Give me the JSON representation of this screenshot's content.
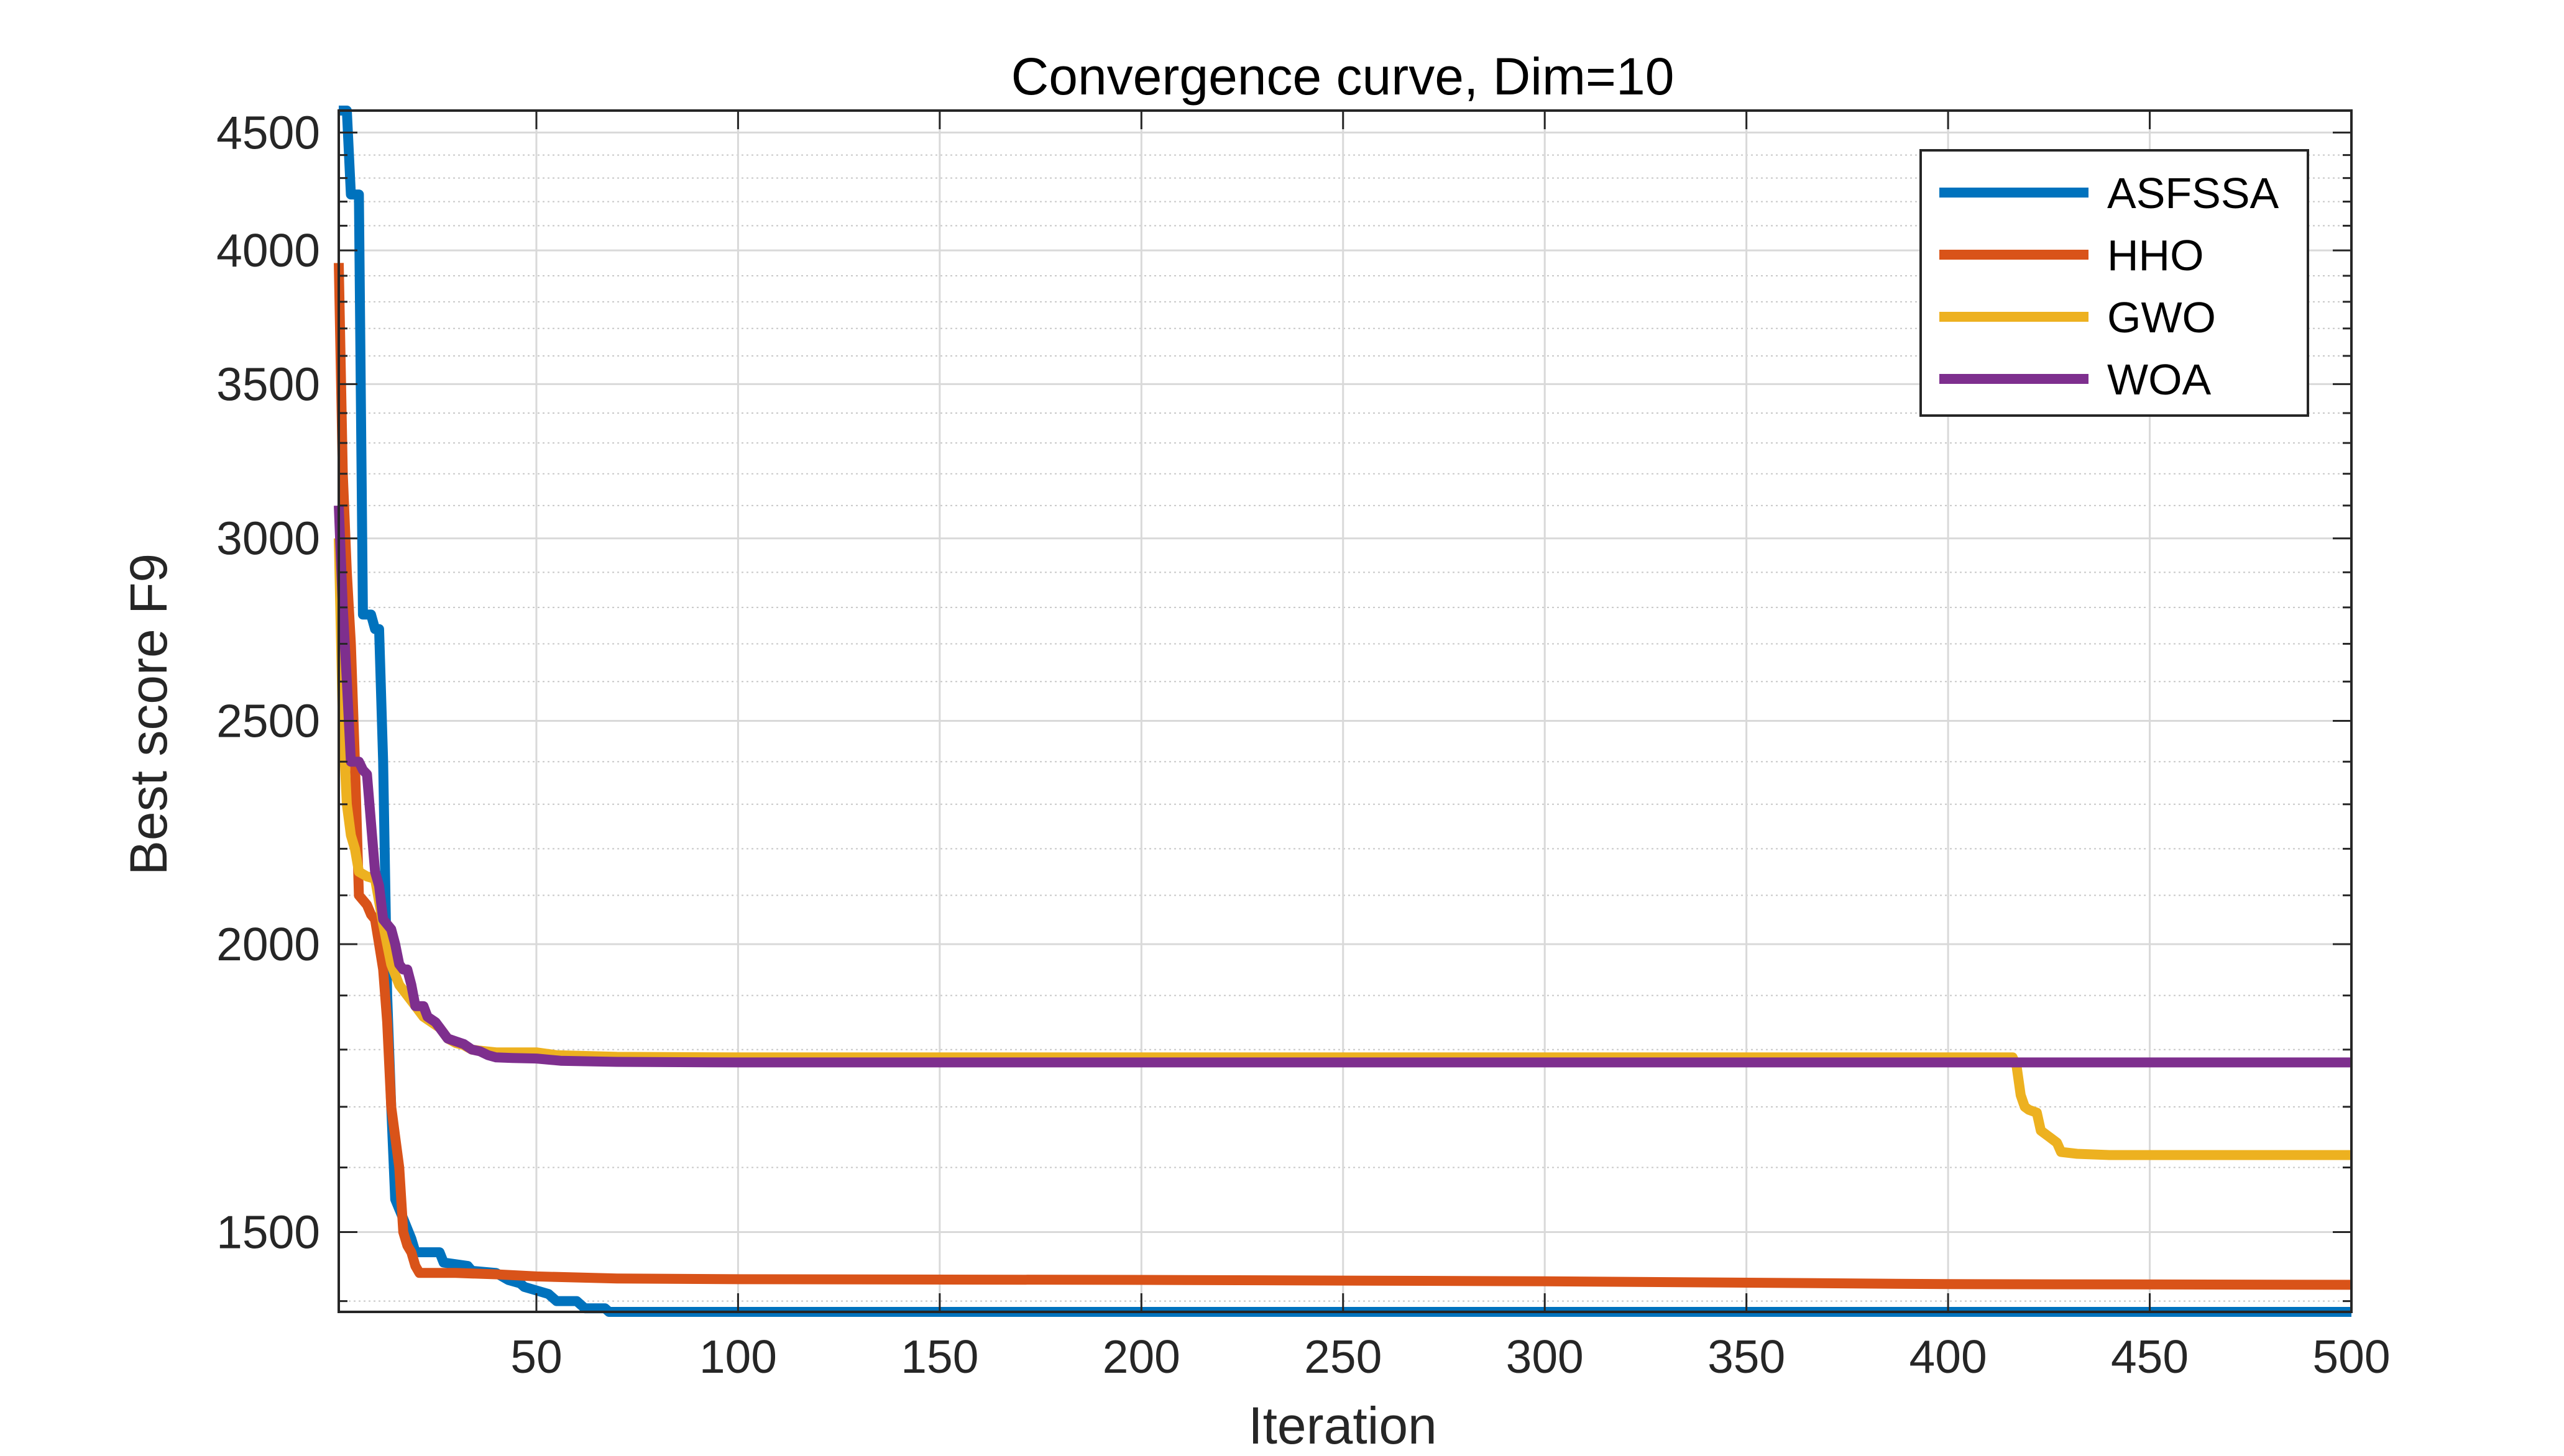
{
  "chart_data": {
    "type": "line",
    "title": "Convergence curve, Dim=10",
    "xlabel": "Iteration",
    "ylabel": "Best score F9",
    "xlim": [
      1,
      500
    ],
    "ylim": [
      1385,
      4600
    ],
    "y_scale": "log",
    "xticks": [
      50,
      100,
      150,
      200,
      250,
      300,
      350,
      400,
      450,
      500
    ],
    "yticks": [
      1500,
      2000,
      2500,
      3000,
      3500,
      4000,
      4500
    ],
    "grid": true,
    "minor_grid": true,
    "legend_position": "top-right",
    "series": [
      {
        "name": "ASFSSA",
        "color": "#0072BD",
        "points": [
          [
            1,
            4600
          ],
          [
            3,
            4600
          ],
          [
            4,
            4230
          ],
          [
            6,
            4230
          ],
          [
            7,
            2780
          ],
          [
            9,
            2780
          ],
          [
            10,
            2740
          ],
          [
            11,
            2740
          ],
          [
            12,
            2400
          ],
          [
            13,
            1900
          ],
          [
            14,
            1700
          ],
          [
            15,
            1550
          ],
          [
            17,
            1520
          ],
          [
            19,
            1490
          ],
          [
            20,
            1470
          ],
          [
            26,
            1470
          ],
          [
            27,
            1455
          ],
          [
            33,
            1450
          ],
          [
            34,
            1443
          ],
          [
            40,
            1440
          ],
          [
            43,
            1430
          ],
          [
            46,
            1425
          ],
          [
            47,
            1420
          ],
          [
            50,
            1415
          ],
          [
            53,
            1410
          ],
          [
            55,
            1400
          ],
          [
            60,
            1400
          ],
          [
            62,
            1390
          ],
          [
            67,
            1390
          ],
          [
            68,
            1385
          ],
          [
            70,
            1370
          ],
          [
            71,
            1355
          ],
          [
            72,
            1352
          ],
          [
            76,
            1352
          ],
          [
            78,
            1345
          ],
          [
            81,
            1345
          ],
          [
            82,
            1330
          ],
          [
            91,
            1328
          ],
          [
            120,
            1327
          ],
          [
            131,
            1325
          ],
          [
            132,
            1315
          ],
          [
            145,
            1313
          ],
          [
            150,
            1308
          ],
          [
            200,
            1305
          ],
          [
            500,
            1305
          ]
        ]
      },
      {
        "name": "HHO",
        "color": "#D95319",
        "points": [
          [
            1,
            3950
          ],
          [
            2,
            3200
          ],
          [
            3,
            2900
          ],
          [
            4,
            2700
          ],
          [
            5,
            2400
          ],
          [
            6,
            2100
          ],
          [
            8,
            2080
          ],
          [
            9,
            2060
          ],
          [
            10,
            2050
          ],
          [
            11,
            2000
          ],
          [
            12,
            1950
          ],
          [
            13,
            1850
          ],
          [
            14,
            1700
          ],
          [
            16,
            1600
          ],
          [
            17,
            1500
          ],
          [
            18,
            1480
          ],
          [
            19,
            1470
          ],
          [
            20,
            1450
          ],
          [
            21,
            1440
          ],
          [
            30,
            1440
          ],
          [
            40,
            1438
          ],
          [
            50,
            1435
          ],
          [
            70,
            1432
          ],
          [
            100,
            1431
          ],
          [
            200,
            1430
          ],
          [
            300,
            1428
          ],
          [
            400,
            1424
          ],
          [
            500,
            1423
          ]
        ]
      },
      {
        "name": "GWO",
        "color": "#EDB120",
        "points": [
          [
            1,
            3000
          ],
          [
            2,
            2500
          ],
          [
            3,
            2300
          ],
          [
            4,
            2230
          ],
          [
            5,
            2200
          ],
          [
            6,
            2150
          ],
          [
            8,
            2140
          ],
          [
            10,
            2135
          ],
          [
            12,
            2040
          ],
          [
            14,
            1960
          ],
          [
            16,
            1920
          ],
          [
            18,
            1900
          ],
          [
            20,
            1880
          ],
          [
            22,
            1860
          ],
          [
            24,
            1850
          ],
          [
            26,
            1840
          ],
          [
            28,
            1820
          ],
          [
            30,
            1812
          ],
          [
            32,
            1808
          ],
          [
            34,
            1800
          ],
          [
            36,
            1798
          ],
          [
            40,
            1795
          ],
          [
            50,
            1795
          ],
          [
            55,
            1790
          ],
          [
            70,
            1787
          ],
          [
            100,
            1786
          ],
          [
            416,
            1786
          ],
          [
            417,
            1770
          ],
          [
            418,
            1720
          ],
          [
            419,
            1700
          ],
          [
            420,
            1695
          ],
          [
            422,
            1690
          ],
          [
            423,
            1660
          ],
          [
            425,
            1650
          ],
          [
            427,
            1640
          ],
          [
            428,
            1625
          ],
          [
            432,
            1622
          ],
          [
            440,
            1620
          ],
          [
            500,
            1620
          ]
        ]
      },
      {
        "name": "WOA",
        "color": "#7E2F8E",
        "points": [
          [
            1,
            3100
          ],
          [
            2,
            2800
          ],
          [
            3,
            2600
          ],
          [
            4,
            2400
          ],
          [
            6,
            2400
          ],
          [
            7,
            2380
          ],
          [
            8,
            2370
          ],
          [
            10,
            2150
          ],
          [
            11,
            2120
          ],
          [
            12,
            2050
          ],
          [
            14,
            2030
          ],
          [
            15,
            2000
          ],
          [
            16,
            1960
          ],
          [
            17,
            1950
          ],
          [
            18,
            1950
          ],
          [
            19,
            1920
          ],
          [
            20,
            1880
          ],
          [
            22,
            1880
          ],
          [
            23,
            1860
          ],
          [
            25,
            1850
          ],
          [
            26,
            1840
          ],
          [
            28,
            1820
          ],
          [
            30,
            1815
          ],
          [
            32,
            1810
          ],
          [
            34,
            1800
          ],
          [
            36,
            1797
          ],
          [
            38,
            1790
          ],
          [
            40,
            1786
          ],
          [
            44,
            1785
          ],
          [
            50,
            1784
          ],
          [
            56,
            1780
          ],
          [
            70,
            1778
          ],
          [
            100,
            1777
          ],
          [
            300,
            1777
          ],
          [
            500,
            1777
          ]
        ]
      }
    ]
  }
}
